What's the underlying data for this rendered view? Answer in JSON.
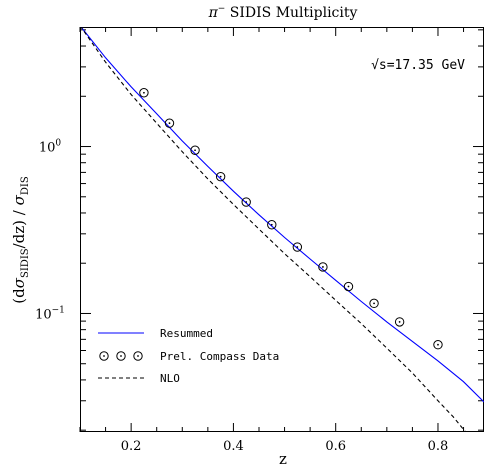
{
  "chart_data": {
    "type": "line",
    "title_base": "π",
    "title_sup": "−",
    "title_rest": " SIDIS Multiplicity",
    "annotation": "√s=17.35 GeV",
    "xlabel": "z",
    "ylabel_parts": {
      "open": "(d",
      "sigma1": "σ",
      "sub1": "SIDIS",
      "mid": "/dz)  / ",
      "sigma2": "σ",
      "sub2": "DIS"
    },
    "xlim": [
      0.1,
      0.89
    ],
    "ylim": [
      0.0195,
      5.2
    ],
    "yscale": "log",
    "x_ticks": [
      {
        "v": 0.2,
        "label": "0.2"
      },
      {
        "v": 0.4,
        "label": "0.4"
      },
      {
        "v": 0.6,
        "label": "0.6"
      },
      {
        "v": 0.8,
        "label": "0.8"
      }
    ],
    "y_ticks": [
      {
        "v": 1,
        "base": "10",
        "exp": "0"
      },
      {
        "v": 0.1,
        "base": "10",
        "exp": "−1"
      }
    ],
    "series": [
      {
        "name": "Resummed",
        "style": "solid",
        "color": "#0000ff",
        "x": [
          0.1,
          0.15,
          0.2,
          0.25,
          0.3,
          0.35,
          0.4,
          0.45,
          0.5,
          0.55,
          0.6,
          0.65,
          0.7,
          0.75,
          0.8,
          0.85,
          0.89
        ],
        "y": [
          5.3,
          3.4,
          2.28,
          1.57,
          1.08,
          0.76,
          0.54,
          0.39,
          0.285,
          0.212,
          0.158,
          0.118,
          0.089,
          0.068,
          0.052,
          0.039,
          0.0295
        ]
      },
      {
        "name": "Prel. Compass Data",
        "style": "markers",
        "color": "#000000",
        "x": [
          0.225,
          0.275,
          0.325,
          0.375,
          0.425,
          0.475,
          0.525,
          0.575,
          0.625,
          0.675,
          0.725,
          0.8
        ],
        "y": [
          2.1,
          1.38,
          0.95,
          0.66,
          0.465,
          0.34,
          0.25,
          0.19,
          0.145,
          0.115,
          0.089,
          0.065
        ]
      },
      {
        "name": "NLO",
        "style": "dashed",
        "color": "#000000",
        "x": [
          0.1,
          0.15,
          0.2,
          0.25,
          0.3,
          0.35,
          0.4,
          0.45,
          0.5,
          0.55,
          0.6,
          0.65,
          0.7,
          0.75,
          0.8,
          0.83,
          0.86
        ],
        "y": [
          5.3,
          3.2,
          2.05,
          1.38,
          0.93,
          0.64,
          0.45,
          0.32,
          0.228,
          0.166,
          0.12,
          0.087,
          0.062,
          0.044,
          0.03,
          0.024,
          0.0185
        ]
      }
    ],
    "legend": [
      {
        "label": "Resummed",
        "style": "solid",
        "color": "#0000ff"
      },
      {
        "label": "Prel. Compass Data",
        "style": "markers",
        "color": "#000000"
      },
      {
        "label": "NLO",
        "style": "dashed",
        "color": "#000000"
      }
    ],
    "legend_position": "bottom-left",
    "grid": false
  }
}
